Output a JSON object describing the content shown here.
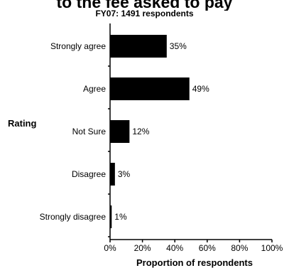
{
  "chart_data": {
    "type": "bar",
    "orientation": "horizontal",
    "title": "to the fee asked to pay",
    "subtitle": "FY07: 1491 respondents",
    "ylabel": "Rating",
    "xlabel": "Proportion of respondents",
    "categories": [
      "Strongly agree",
      "Agree",
      "Not Sure",
      "Disagree",
      "Strongly disagree"
    ],
    "values": [
      35,
      49,
      12,
      3,
      1
    ],
    "value_labels": [
      "35%",
      "49%",
      "12%",
      "3%",
      "1%"
    ],
    "xlim": [
      0,
      100
    ],
    "xticks": [
      0,
      20,
      40,
      60,
      80,
      100
    ],
    "xtick_labels": [
      "0%",
      "20%",
      "40%",
      "60%",
      "80%",
      "100%"
    ],
    "bar_color": "#000000",
    "grid": false,
    "legend": "none"
  }
}
